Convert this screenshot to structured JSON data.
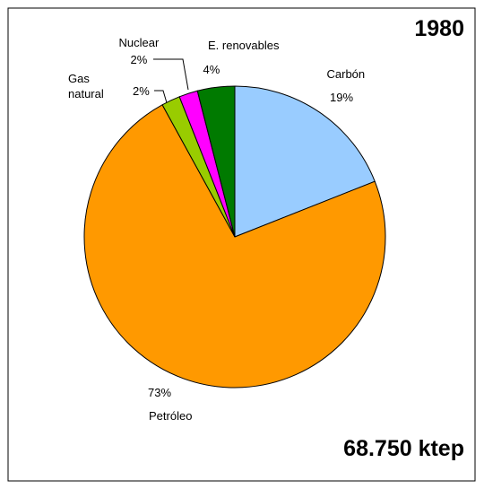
{
  "chart_data": {
    "type": "pie",
    "title": "1980",
    "annotation": "68.750 ktep",
    "categories": [
      "Carbón",
      "Petróleo",
      "Gas\nnatural",
      "Nuclear",
      "E. renovables"
    ],
    "values": [
      19,
      73,
      2,
      2,
      4
    ],
    "value_labels": [
      "19%",
      "73%",
      "2%",
      "2%",
      "4%"
    ],
    "colors": [
      "#99ccff",
      "#ff9900",
      "#99cc00",
      "#ff00ff",
      "#007a00"
    ]
  }
}
